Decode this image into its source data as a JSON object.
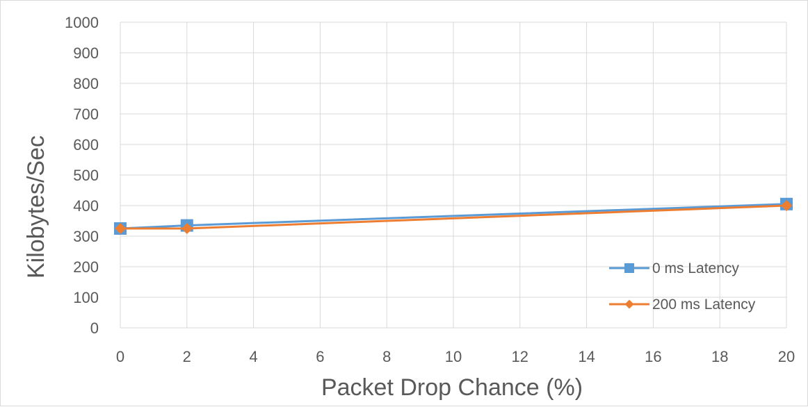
{
  "chart_data": {
    "type": "line",
    "title": "",
    "xlabel": "Packet Drop Chance (%)",
    "ylabel": "Kilobytes/Sec",
    "xlim": [
      0,
      20
    ],
    "ylim": [
      0,
      1000
    ],
    "xticks": [
      0,
      2,
      4,
      6,
      8,
      10,
      12,
      14,
      16,
      18,
      20
    ],
    "yticks": [
      0,
      100,
      200,
      300,
      400,
      500,
      600,
      700,
      800,
      900,
      1000
    ],
    "grid": true,
    "legend_position": "bottom-right",
    "series": [
      {
        "name": "0 ms Latency",
        "color": "#5b9bd5",
        "marker": "square",
        "x": [
          0,
          2,
          20
        ],
        "y": [
          325,
          335,
          405
        ]
      },
      {
        "name": "200 ms Latency",
        "color": "#ed7d31",
        "marker": "diamond",
        "x": [
          0,
          2,
          20
        ],
        "y": [
          325,
          325,
          400
        ]
      }
    ]
  }
}
